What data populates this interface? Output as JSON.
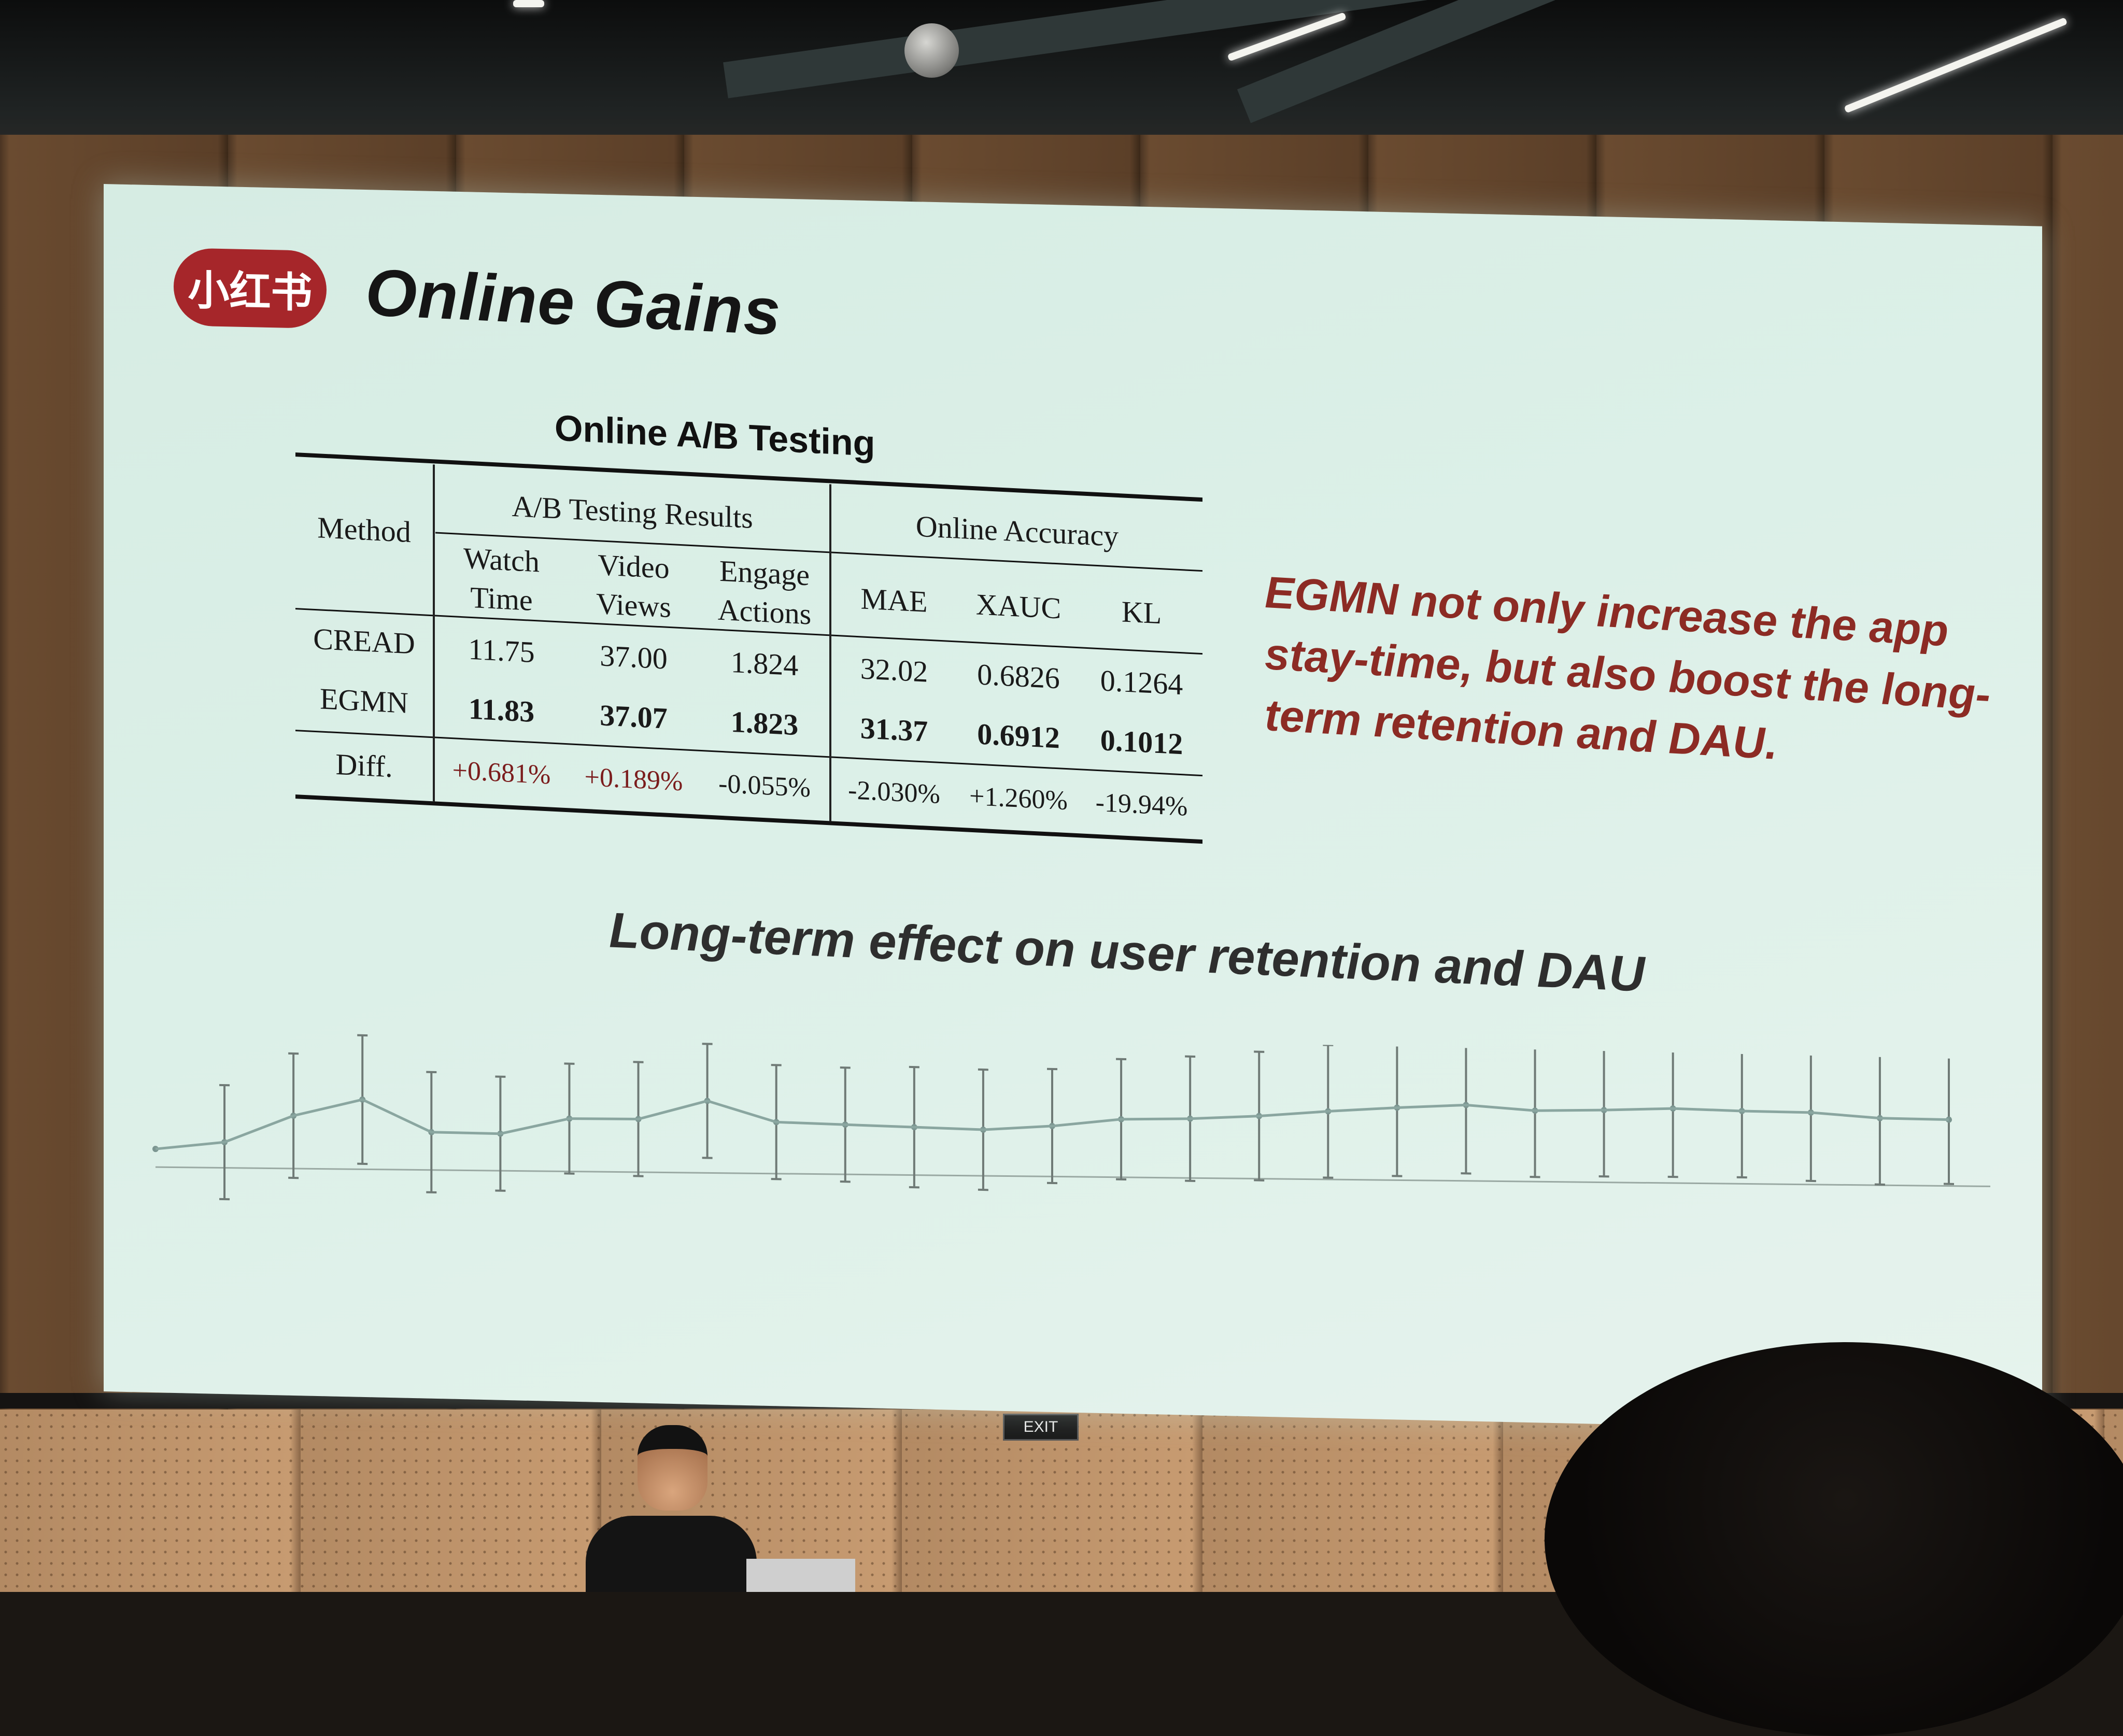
{
  "slide": {
    "logo_text": "小红书",
    "title": "Online Gains",
    "table_caption": "Online A/B Testing",
    "table": {
      "method_header": "Method",
      "group_ab": "A/B Testing Results",
      "group_online": "Online Accuracy",
      "columns": [
        "Watch Time",
        "Video Views",
        "Engage Actions",
        "MAE",
        "XAUC",
        "KL"
      ],
      "rows": [
        {
          "method": "CREAD",
          "values": [
            "11.75",
            "37.00",
            "1.824",
            "32.02",
            "0.6826",
            "0.1264"
          ]
        },
        {
          "method": "EGMN",
          "values": [
            "11.83",
            "37.07",
            "1.823",
            "31.37",
            "0.6912",
            "0.1012"
          ]
        },
        {
          "method": "Diff.",
          "values": [
            "+0.681%",
            "+0.189%",
            "-0.055%",
            "-2.030%",
            "+1.260%",
            "-19.94%"
          ]
        }
      ]
    },
    "side_note": "EGMN not only increase the app stay-time, but also boost the long-term retention and DAU.",
    "chart_title": "Long-term effect on user retention and DAU"
  },
  "room": {
    "exit_sign": "EXIT"
  },
  "colors": {
    "slide_bg": "#dcf0e8",
    "logo_red": "#a6262a",
    "note_red": "#8c2b24",
    "diff_red": "#7b1d1d"
  },
  "chart_data": {
    "type": "line",
    "title": "Long-term effect on user retention and DAU",
    "xlabel": "",
    "ylabel": "",
    "grid": false,
    "error_bars": true,
    "series": [
      {
        "values": [
          0.0,
          0.08,
          0.35,
          0.52,
          0.22,
          0.22,
          0.38,
          0.39,
          0.58,
          0.39,
          0.38,
          0.37,
          0.36,
          0.41,
          0.49,
          0.51,
          0.55,
          0.61,
          0.66,
          0.7,
          0.66,
          0.68,
          0.71,
          0.7,
          0.7,
          0.66,
          0.66
        ],
        "error": [
          0,
          0.55,
          0.6,
          0.62,
          0.58,
          0.55,
          0.53,
          0.55,
          0.55,
          0.55,
          0.55,
          0.58,
          0.58,
          0.55,
          0.58,
          0.6,
          0.62,
          0.64,
          0.66,
          0.66,
          0.64,
          0.64,
          0.66,
          0.64,
          0.66,
          0.64,
          0.62
        ]
      }
    ]
  }
}
